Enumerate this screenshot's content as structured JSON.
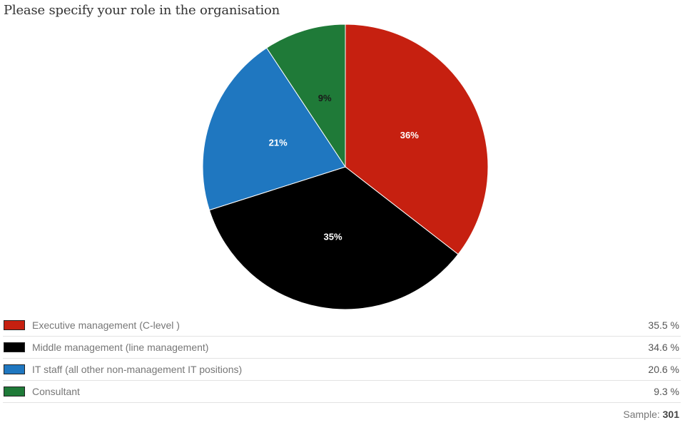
{
  "chart_data": {
    "type": "pie",
    "title": "Please specify your role in the organisation",
    "slices": [
      {
        "label": "Executive management (C-level )",
        "value": 35.5,
        "display_value": "35.5 %",
        "slice_label": "36%",
        "color": "#c62010",
        "label_color": "#ffffff"
      },
      {
        "label": "Middle management (line management)",
        "value": 34.6,
        "display_value": "34.6 %",
        "slice_label": "35%",
        "color": "#000000",
        "label_color": "#ffffff"
      },
      {
        "label": "IT staff (all other non-management IT positions)",
        "value": 20.6,
        "display_value": "20.6 %",
        "slice_label": "21%",
        "color": "#1f77c0",
        "label_color": "#ffffff"
      },
      {
        "label": "Consultant",
        "value": 9.3,
        "display_value": "9.3 %",
        "slice_label": "9%",
        "color": "#1f7a38",
        "label_color": "#1a1a1a"
      }
    ],
    "legend_position": "bottom"
  },
  "footer": {
    "sample_label": "Sample:",
    "sample_value": "301"
  }
}
